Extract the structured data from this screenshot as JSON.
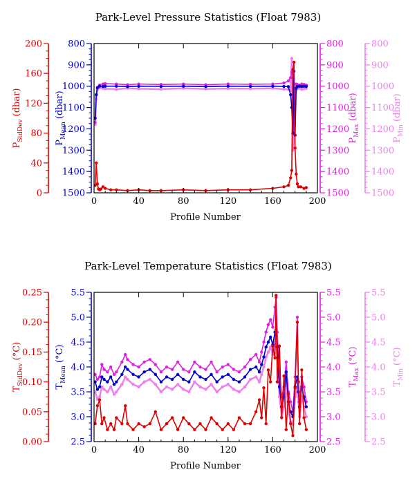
{
  "colors": {
    "stddev": "#e00000",
    "mean": "#0000cc",
    "max": "#e020e0",
    "min": "#ee80ee",
    "frame": "#000000"
  },
  "chart_data": [
    {
      "type": "line",
      "title": "Park-Level Pressure Statistics (Float 7983)",
      "xlabel": "Profile Number",
      "xlim": [
        0,
        200
      ],
      "xticks": [
        "0",
        "40",
        "80",
        "120",
        "160",
        "200"
      ],
      "axes": {
        "stddev": {
          "label_main": "P",
          "label_sub": "StdDev",
          "label_unit": " (dbar)",
          "range": [
            0,
            200
          ],
          "ticks": [
            "200",
            "160",
            "120",
            "80",
            "40",
            "0"
          ]
        },
        "mean": {
          "label_main": "P",
          "label_sub": "Mean",
          "label_unit": " (dbar)",
          "range": [
            800,
            1500
          ],
          "inverted": true,
          "ticks": [
            "800",
            "900",
            "1000",
            "1100",
            "1200",
            "1300",
            "1400",
            "1500"
          ]
        },
        "max": {
          "label_main": "P",
          "label_sub": "Max",
          "label_unit": " (dbar)",
          "range": [
            800,
            1500
          ],
          "inverted": true,
          "ticks": [
            "800",
            "900",
            "1000",
            "1100",
            "1200",
            "1300",
            "1400",
            "1500"
          ]
        },
        "min": {
          "label_main": "P",
          "label_sub": "Min",
          "label_unit": " (dbar)",
          "range": [
            800,
            1500
          ],
          "inverted": true,
          "ticks": [
            "800",
            "900",
            "1000",
            "1100",
            "1200",
            "1300",
            "1400",
            "1500"
          ]
        }
      },
      "series": [
        {
          "key": "stddev",
          "x": [
            1,
            2,
            3,
            4,
            5,
            6,
            8,
            10,
            15,
            20,
            30,
            40,
            50,
            60,
            80,
            100,
            120,
            140,
            160,
            170,
            174,
            176,
            177,
            178,
            179,
            180,
            181,
            182,
            183,
            185,
            188,
            190
          ],
          "y": [
            10,
            40,
            12,
            5,
            4,
            5,
            8,
            6,
            4,
            4,
            3,
            4,
            3,
            3,
            4,
            3,
            4,
            4,
            6,
            8,
            10,
            20,
            30,
            165,
            175,
            60,
            25,
            12,
            8,
            8,
            6,
            7
          ]
        },
        {
          "key": "mean",
          "x": [
            1,
            2,
            3,
            5,
            8,
            10,
            20,
            30,
            40,
            60,
            80,
            100,
            120,
            140,
            160,
            170,
            174,
            176,
            177,
            178,
            179,
            180,
            181,
            182,
            184,
            186,
            188,
            190
          ],
          "y": [
            1150,
            1040,
            1008,
            1000,
            1001,
            1000,
            1000,
            1002,
            1000,
            1001,
            1000,
            1002,
            1000,
            1001,
            1000,
            1001,
            1002,
            1040,
            1100,
            1220,
            930,
            1230,
            1010,
            1002,
            1000,
            1001,
            1000,
            1001
          ]
        },
        {
          "key": "max",
          "x": [
            1,
            2,
            3,
            5,
            8,
            10,
            20,
            30,
            40,
            60,
            80,
            100,
            120,
            140,
            160,
            170,
            174,
            176,
            177,
            178,
            179,
            180,
            181,
            182,
            184,
            186,
            188,
            190
          ],
          "y": [
            1170,
            1040,
            1005,
            995,
            990,
            988,
            990,
            993,
            990,
            992,
            990,
            993,
            990,
            991,
            990,
            985,
            975,
            960,
            935,
            930,
            1220,
            1020,
            990,
            992,
            995,
            990,
            992,
            995
          ]
        },
        {
          "key": "min",
          "x": [
            1,
            2,
            3,
            5,
            8,
            10,
            20,
            30,
            40,
            60,
            80,
            100,
            120,
            140,
            160,
            170,
            174,
            176,
            177,
            178,
            179,
            180,
            181,
            182,
            184,
            186,
            188,
            190
          ],
          "y": [
            1180,
            1060,
            1015,
            1008,
            1010,
            1012,
            1015,
            1010,
            1012,
            1014,
            1010,
            1013,
            1011,
            1012,
            1010,
            1014,
            1015,
            1020,
            870,
            1300,
            1250,
            1030,
            1015,
            1012,
            1010,
            1015,
            1012,
            1010
          ]
        }
      ]
    },
    {
      "type": "line",
      "title": "Park-Level Temperature Statistics (Float 7983)",
      "xlabel": "Profile Number",
      "xlim": [
        0,
        200
      ],
      "xticks": [
        "0",
        "40",
        "80",
        "120",
        "160",
        "200"
      ],
      "axes": {
        "stddev": {
          "label_main": "T",
          "label_sub": "StdDev",
          "label_unit": " (°C)",
          "range": [
            0,
            0.25
          ],
          "ticks": [
            "0.25",
            "0.20",
            "0.15",
            "0.10",
            "0.05",
            "0.00"
          ]
        },
        "mean": {
          "label_main": "T",
          "label_sub": "Mean",
          "label_unit": " (°C)",
          "range": [
            2.5,
            5.5
          ],
          "ticks": [
            "5.5",
            "5.0",
            "4.5",
            "4.0",
            "3.5",
            "3.0",
            "2.5"
          ]
        },
        "max": {
          "label_main": "T",
          "label_sub": "Max",
          "label_unit": " (°C)",
          "range": [
            2.5,
            5.5
          ],
          "ticks": [
            "5.5",
            "5.0",
            "4.5",
            "4.0",
            "3.5",
            "3.0",
            "2.5"
          ]
        },
        "min": {
          "label_main": "T",
          "label_sub": "Min",
          "label_unit": " (°C)",
          "range": [
            2.5,
            5.5
          ],
          "ticks": [
            "5.5",
            "5.0",
            "4.5",
            "4.0",
            "3.5",
            "3.0",
            "2.5"
          ]
        }
      },
      "series": [
        {
          "key": "stddev",
          "x": [
            1,
            3,
            5,
            7,
            9,
            12,
            15,
            18,
            20,
            25,
            28,
            30,
            35,
            40,
            45,
            50,
            55,
            60,
            65,
            70,
            75,
            80,
            85,
            90,
            95,
            100,
            105,
            110,
            115,
            120,
            125,
            130,
            135,
            140,
            145,
            148,
            150,
            152,
            154,
            156,
            158,
            160,
            162,
            163,
            164,
            166,
            168,
            170,
            172,
            174,
            176,
            178,
            180,
            182,
            183,
            184,
            186,
            188,
            190
          ],
          "y": [
            0.03,
            0.06,
            0.07,
            0.03,
            0.04,
            0.02,
            0.03,
            0.02,
            0.04,
            0.03,
            0.06,
            0.03,
            0.02,
            0.03,
            0.025,
            0.03,
            0.05,
            0.02,
            0.03,
            0.04,
            0.02,
            0.04,
            0.03,
            0.02,
            0.03,
            0.02,
            0.04,
            0.03,
            0.02,
            0.03,
            0.02,
            0.04,
            0.03,
            0.03,
            0.05,
            0.07,
            0.04,
            0.09,
            0.03,
            0.12,
            0.1,
            0.16,
            0.14,
            0.245,
            0.1,
            0.16,
            0.04,
            0.11,
            0.02,
            0.08,
            0.03,
            0.01,
            0.09,
            0.2,
            0.1,
            0.03,
            0.12,
            0.04,
            0.02
          ]
        },
        {
          "key": "mean",
          "x": [
            1,
            3,
            5,
            7,
            9,
            12,
            15,
            18,
            20,
            25,
            28,
            30,
            35,
            40,
            45,
            50,
            55,
            60,
            65,
            70,
            75,
            80,
            85,
            90,
            95,
            100,
            105,
            110,
            115,
            120,
            125,
            130,
            135,
            140,
            145,
            148,
            150,
            152,
            154,
            156,
            158,
            160,
            162,
            163,
            164,
            166,
            168,
            170,
            172,
            174,
            176,
            178,
            180,
            182,
            183,
            184,
            186,
            188,
            190
          ],
          "y": [
            3.7,
            3.55,
            3.6,
            3.8,
            3.75,
            3.7,
            3.8,
            3.65,
            3.7,
            3.85,
            4.0,
            3.95,
            3.85,
            3.8,
            3.9,
            3.95,
            3.85,
            3.7,
            3.8,
            3.75,
            3.85,
            3.75,
            3.7,
            3.9,
            3.8,
            3.75,
            3.85,
            3.7,
            3.8,
            3.85,
            3.75,
            3.7,
            3.8,
            3.95,
            4.0,
            3.9,
            4.05,
            4.2,
            4.4,
            4.5,
            4.6,
            4.45,
            4.7,
            4.75,
            4.4,
            3.6,
            3.2,
            3.4,
            3.9,
            3.3,
            3.1,
            3.0,
            3.6,
            3.8,
            3.5,
            3.2,
            3.6,
            3.4,
            3.2
          ]
        },
        {
          "key": "max",
          "x": [
            1,
            3,
            5,
            7,
            9,
            12,
            15,
            18,
            20,
            25,
            28,
            30,
            35,
            40,
            45,
            50,
            55,
            60,
            65,
            70,
            75,
            80,
            85,
            90,
            95,
            100,
            105,
            110,
            115,
            120,
            125,
            130,
            135,
            140,
            145,
            148,
            150,
            152,
            154,
            156,
            158,
            160,
            162,
            163,
            164,
            166,
            168,
            170,
            172,
            174,
            176,
            178,
            180,
            182,
            183,
            184,
            186,
            188,
            190
          ],
          "y": [
            3.85,
            3.75,
            3.8,
            4.05,
            3.95,
            3.9,
            4.0,
            3.85,
            3.9,
            4.1,
            4.25,
            4.15,
            4.05,
            4.0,
            4.1,
            4.15,
            4.05,
            3.9,
            4.0,
            3.95,
            4.1,
            3.95,
            3.9,
            4.1,
            4.0,
            3.95,
            4.1,
            3.9,
            4.0,
            4.05,
            3.95,
            3.9,
            4.0,
            4.15,
            4.25,
            4.1,
            4.3,
            4.5,
            4.7,
            4.85,
            4.95,
            4.8,
            5.2,
            5.4,
            4.7,
            3.8,
            3.4,
            3.6,
            4.1,
            3.5,
            3.3,
            3.1,
            3.8,
            5.0,
            3.7,
            3.3,
            3.8,
            3.6,
            3.3
          ]
        },
        {
          "key": "min",
          "x": [
            1,
            3,
            5,
            7,
            9,
            12,
            15,
            18,
            20,
            25,
            28,
            30,
            35,
            40,
            45,
            50,
            55,
            60,
            65,
            70,
            75,
            80,
            85,
            90,
            95,
            100,
            105,
            110,
            115,
            120,
            125,
            130,
            135,
            140,
            145,
            148,
            150,
            152,
            154,
            156,
            158,
            160,
            162,
            163,
            164,
            166,
            168,
            170,
            172,
            174,
            176,
            178,
            180,
            182,
            183,
            184,
            186,
            188,
            190
          ],
          "y": [
            3.5,
            3.35,
            3.4,
            3.6,
            3.55,
            3.5,
            3.6,
            3.45,
            3.5,
            3.65,
            3.8,
            3.75,
            3.65,
            3.6,
            3.7,
            3.75,
            3.65,
            3.5,
            3.6,
            3.55,
            3.65,
            3.55,
            3.5,
            3.7,
            3.6,
            3.55,
            3.65,
            3.5,
            3.6,
            3.65,
            3.55,
            3.5,
            3.6,
            3.75,
            3.8,
            3.7,
            3.85,
            4.0,
            4.2,
            4.3,
            4.4,
            4.25,
            4.5,
            4.55,
            4.2,
            3.4,
            3.0,
            3.2,
            3.7,
            3.1,
            2.9,
            2.85,
            3.4,
            3.6,
            3.3,
            3.0,
            3.4,
            3.2,
            3.0
          ]
        }
      ]
    }
  ]
}
